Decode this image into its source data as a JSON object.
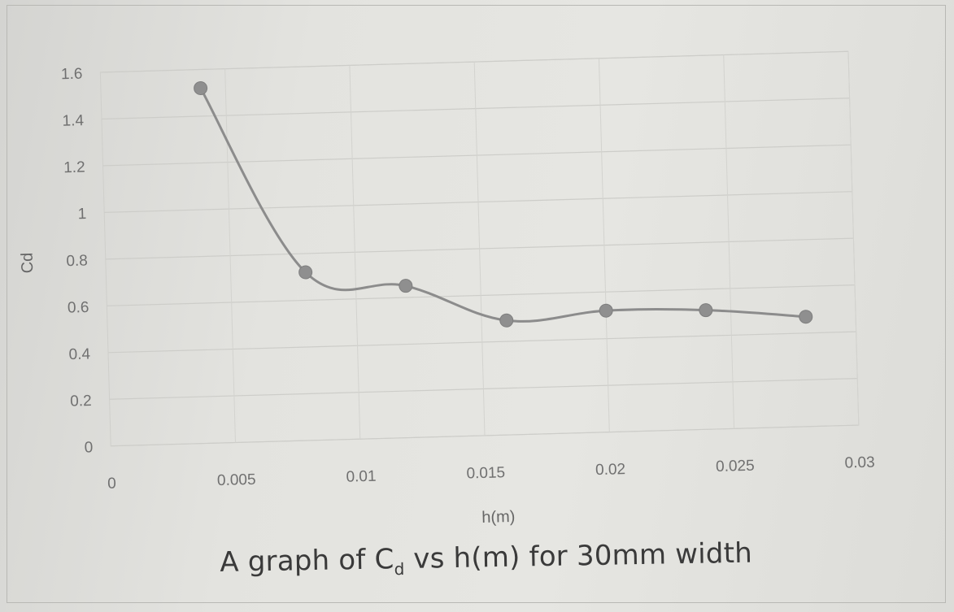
{
  "chart_data": {
    "type": "line",
    "title": "A graph of Cd vs h(m) for 30mm width",
    "title_parts": {
      "pre": "A graph of C",
      "sub": "d",
      "post": " vs h(m) for 30mm width"
    },
    "xlabel": "h(m)",
    "ylabel": "Cd",
    "xlim": [
      0,
      0.03
    ],
    "ylim": [
      0,
      1.6
    ],
    "x_ticks": [
      "0",
      "0.005",
      "0.01",
      "0.015",
      "0.02",
      "0.025",
      "0.03"
    ],
    "y_ticks": [
      "0",
      "0.2",
      "0.4",
      "0.6",
      "0.8",
      "1",
      "1.2",
      "1.4",
      "1.6"
    ],
    "grid": true,
    "smoothed": true,
    "series": [
      {
        "x": [
          0.004,
          0.008,
          0.012,
          0.016,
          0.02,
          0.024,
          0.028
        ],
        "values": [
          1.52,
          0.72,
          0.65,
          0.49,
          0.52,
          0.51,
          0.47
        ],
        "color": "#8c8c8c"
      }
    ]
  }
}
